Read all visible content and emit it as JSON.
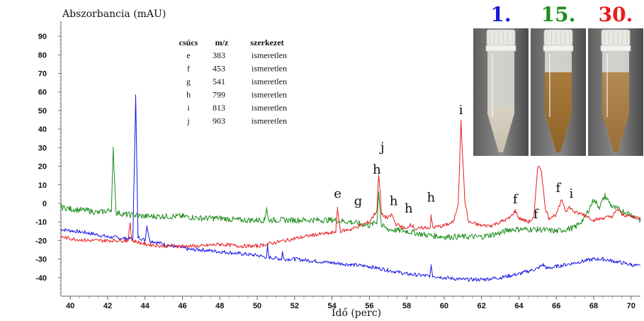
{
  "chart_data": {
    "type": "line",
    "title": "",
    "ylabel": "Abszorbancia (mAU)",
    "xlabel": "Idő (perc)",
    "xlim": [
      39.5,
      70.5
    ],
    "ylim": [
      -50,
      95
    ],
    "x_ticks": [
      40,
      42,
      44,
      46,
      48,
      50,
      52,
      54,
      56,
      58,
      60,
      62,
      64,
      66,
      68,
      70
    ],
    "y_ticks": [
      90,
      80,
      70,
      60,
      50,
      40,
      30,
      20,
      10,
      0,
      -10,
      -20,
      -30,
      -40
    ],
    "grid": false,
    "series": [
      {
        "label": "1.",
        "color": "#1414e6",
        "points": [
          [
            39.5,
            -14
          ],
          [
            41,
            -16
          ],
          [
            42,
            -18
          ],
          [
            43,
            -19
          ],
          [
            43.35,
            -19
          ],
          [
            43.5,
            58
          ],
          [
            43.62,
            -18
          ],
          [
            44,
            -20
          ],
          [
            44.1,
            -12
          ],
          [
            44.25,
            -20
          ],
          [
            45,
            -22
          ],
          [
            46,
            -24
          ],
          [
            46.5,
            -25
          ],
          [
            47,
            -25
          ],
          [
            48,
            -26
          ],
          [
            49,
            -27
          ],
          [
            50,
            -28
          ],
          [
            50.5,
            -29
          ],
          [
            50.55,
            -23
          ],
          [
            50.62,
            -29
          ],
          [
            51.3,
            -30
          ],
          [
            51.35,
            -26
          ],
          [
            51.42,
            -30
          ],
          [
            52,
            -30
          ],
          [
            53,
            -31
          ],
          [
            54,
            -32
          ],
          [
            55,
            -33
          ],
          [
            56,
            -34
          ],
          [
            57,
            -36
          ],
          [
            58,
            -38
          ],
          [
            59,
            -39
          ],
          [
            59.25,
            -39
          ],
          [
            59.3,
            -33
          ],
          [
            59.38,
            -39
          ],
          [
            60,
            -40
          ],
          [
            61,
            -41
          ],
          [
            62,
            -41
          ],
          [
            63,
            -40
          ],
          [
            64,
            -38
          ],
          [
            65,
            -35
          ],
          [
            65.3,
            -33
          ],
          [
            65.5,
            -35
          ],
          [
            66,
            -34
          ],
          [
            67,
            -32
          ],
          [
            68,
            -30
          ],
          [
            68.5,
            -30
          ],
          [
            69,
            -31
          ],
          [
            70,
            -33
          ],
          [
            70.5,
            -34
          ]
        ]
      },
      {
        "label": "15.",
        "color": "#1e8c1e",
        "points": [
          [
            39.5,
            -2
          ],
          [
            40,
            -3
          ],
          [
            41,
            -4
          ],
          [
            41.5,
            -5
          ],
          [
            42,
            -4
          ],
          [
            42.2,
            -3
          ],
          [
            42.3,
            29
          ],
          [
            42.45,
            -5
          ],
          [
            43,
            -6
          ],
          [
            44,
            -7
          ],
          [
            45,
            -7
          ],
          [
            46,
            -7
          ],
          [
            47,
            -8
          ],
          [
            48,
            -8
          ],
          [
            49,
            -9
          ],
          [
            50,
            -9
          ],
          [
            50.4,
            -9
          ],
          [
            50.5,
            -2
          ],
          [
            50.6,
            -9
          ],
          [
            51,
            -9
          ],
          [
            52,
            -9
          ],
          [
            53,
            -9
          ],
          [
            54,
            -9
          ],
          [
            55,
            -10
          ],
          [
            55.5,
            -11
          ],
          [
            56,
            -12
          ],
          [
            56.4,
            -10
          ],
          [
            56.5,
            6
          ],
          [
            56.65,
            -12
          ],
          [
            57,
            -14
          ],
          [
            58,
            -15
          ],
          [
            59,
            -17
          ],
          [
            60,
            -18
          ],
          [
            61,
            -18
          ],
          [
            62,
            -18
          ],
          [
            63,
            -16
          ],
          [
            63.5,
            -14
          ],
          [
            64,
            -14
          ],
          [
            65,
            -14
          ],
          [
            66,
            -15
          ],
          [
            67,
            -13
          ],
          [
            67.5,
            -8
          ],
          [
            68,
            2
          ],
          [
            68.3,
            -2
          ],
          [
            68.6,
            4
          ],
          [
            69,
            -2
          ],
          [
            70,
            -6
          ],
          [
            70.5,
            -9
          ]
        ]
      },
      {
        "label": "30.",
        "color": "#e61e1e",
        "points": [
          [
            39.5,
            -18
          ],
          [
            40,
            -19
          ],
          [
            41,
            -20
          ],
          [
            42,
            -20
          ],
          [
            43,
            -20
          ],
          [
            43.1,
            -20
          ],
          [
            43.2,
            -10
          ],
          [
            43.3,
            -20
          ],
          [
            44,
            -22
          ],
          [
            45,
            -23
          ],
          [
            46,
            -23
          ],
          [
            47,
            -23
          ],
          [
            48,
            -22
          ],
          [
            49,
            -23
          ],
          [
            50,
            -23
          ],
          [
            51,
            -21
          ],
          [
            52,
            -19
          ],
          [
            53,
            -17
          ],
          [
            54,
            -16
          ],
          [
            54.2,
            -15
          ],
          [
            54.3,
            -3
          ],
          [
            54.45,
            -15
          ],
          [
            55,
            -14
          ],
          [
            55.5,
            -12
          ],
          [
            56,
            -10
          ],
          [
            56.4,
            -4
          ],
          [
            56.5,
            16
          ],
          [
            56.65,
            -6
          ],
          [
            57,
            -8
          ],
          [
            57.2,
            -6
          ],
          [
            57.4,
            -11
          ],
          [
            58,
            -14
          ],
          [
            58.2,
            -11
          ],
          [
            58.5,
            -14
          ],
          [
            59,
            -13
          ],
          [
            59.25,
            -13
          ],
          [
            59.3,
            -7
          ],
          [
            59.4,
            -13
          ],
          [
            60,
            -12
          ],
          [
            60.5,
            -10
          ],
          [
            60.75,
            0
          ],
          [
            60.9,
            44
          ],
          [
            61.1,
            2
          ],
          [
            61.3,
            -10
          ],
          [
            62,
            -12
          ],
          [
            62.5,
            -12
          ],
          [
            63,
            -10
          ],
          [
            63.5,
            -8
          ],
          [
            63.8,
            -4
          ],
          [
            64,
            -8
          ],
          [
            64.5,
            -10
          ],
          [
            64.8,
            -8
          ],
          [
            65,
            20
          ],
          [
            65.2,
            18
          ],
          [
            65.4,
            -2
          ],
          [
            65.6,
            -8
          ],
          [
            66,
            -6
          ],
          [
            66.3,
            2
          ],
          [
            66.5,
            -4
          ],
          [
            66.7,
            -2
          ],
          [
            67,
            -5
          ],
          [
            67.5,
            -6
          ],
          [
            68,
            -9
          ],
          [
            68.5,
            -8
          ],
          [
            69,
            -7
          ],
          [
            69.3,
            -3
          ],
          [
            69.5,
            -6
          ],
          [
            70,
            -7
          ],
          [
            70.5,
            -8
          ]
        ]
      }
    ],
    "peak_labels": [
      {
        "text": "e",
        "x": 54.3,
        "y": 3
      },
      {
        "text": "g",
        "x": 55.4,
        "y": -1
      },
      {
        "text": "h",
        "x": 56.4,
        "y": 16
      },
      {
        "text": "j",
        "x": 56.7,
        "y": 28
      },
      {
        "text": "h",
        "x": 57.3,
        "y": -1
      },
      {
        "text": "h",
        "x": 58.1,
        "y": -5
      },
      {
        "text": "h",
        "x": 59.3,
        "y": 1
      },
      {
        "text": "i",
        "x": 60.9,
        "y": 48
      },
      {
        "text": "f",
        "x": 63.8,
        "y": 0
      },
      {
        "text": "f",
        "x": 64.9,
        "y": -8
      },
      {
        "text": "f",
        "x": 66.1,
        "y": 6
      },
      {
        "text": "i",
        "x": 66.8,
        "y": 3
      }
    ],
    "peak_table": {
      "headers": [
        "csúcs",
        "m/z",
        "szerkezet"
      ],
      "rows": [
        [
          "e",
          "383",
          "ismeretlen"
        ],
        [
          "f",
          "453",
          "ismeretlen"
        ],
        [
          "g",
          "541",
          "ismeretlen"
        ],
        [
          "h",
          "799",
          "ismeretlen"
        ],
        [
          "i",
          "813",
          "ismeretlen"
        ],
        [
          "j",
          "903",
          "ismeretlen"
        ]
      ]
    }
  },
  "samples": [
    {
      "label": "1.",
      "color": "#1a1ad6",
      "liquid": "#d8d2c4",
      "liquid_low": "#c9c0ad"
    },
    {
      "label": "15.",
      "color": "#1e8c1e",
      "liquid": "#a87a3c",
      "liquid_low": "#8e6228"
    },
    {
      "label": "30.",
      "color": "#e61e1e",
      "liquid": "#b48a54",
      "liquid_low": "#9a6e38"
    }
  ]
}
